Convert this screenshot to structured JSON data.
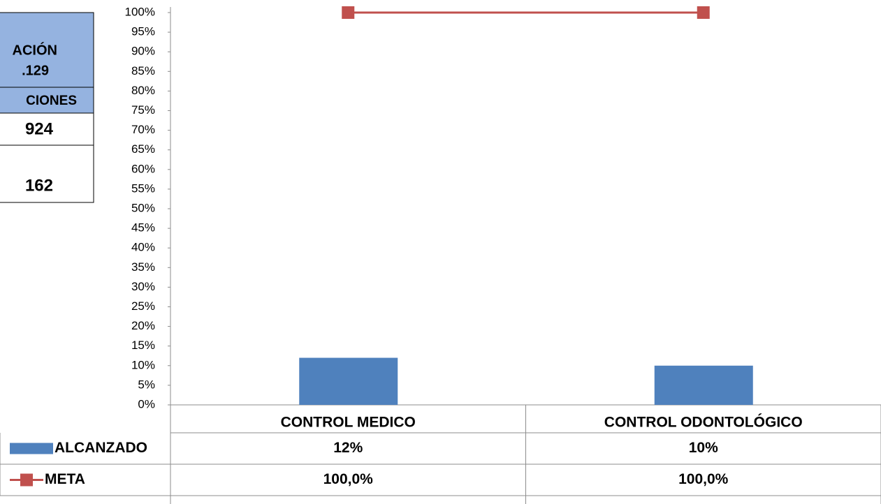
{
  "chart_data": {
    "type": "bar",
    "categories": [
      "CONTROL MEDICO",
      "CONTROL ODONTOLÓGICO"
    ],
    "series": [
      {
        "name": "ALCANZADO",
        "type": "bar",
        "color": "#4f81bd",
        "values": [
          12,
          10
        ],
        "value_labels": [
          "12%",
          "10%"
        ]
      },
      {
        "name": "META",
        "type": "line",
        "color": "#c0504d",
        "values": [
          100,
          100
        ],
        "value_labels": [
          "100,0%",
          "100,0%"
        ]
      }
    ],
    "ylim": [
      0,
      100
    ],
    "yticks": [
      {
        "value": 0,
        "label": "0%"
      },
      {
        "value": 5,
        "label": "5%"
      },
      {
        "value": 10,
        "label": "10%"
      },
      {
        "value": 15,
        "label": "15%"
      },
      {
        "value": 20,
        "label": "20%"
      },
      {
        "value": 25,
        "label": "25%"
      },
      {
        "value": 30,
        "label": "30%"
      },
      {
        "value": 35,
        "label": "35%"
      },
      {
        "value": 40,
        "label": "40%"
      },
      {
        "value": 45,
        "label": "45%"
      },
      {
        "value": 50,
        "label": "50%"
      },
      {
        "value": 55,
        "label": "55%"
      },
      {
        "value": 60,
        "label": "60%"
      },
      {
        "value": 65,
        "label": "65%"
      },
      {
        "value": 70,
        "label": "70%"
      },
      {
        "value": 75,
        "label": "75%"
      },
      {
        "value": 80,
        "label": "80%"
      },
      {
        "value": 85,
        "label": "85%"
      },
      {
        "value": 90,
        "label": "90%"
      },
      {
        "value": 95,
        "label": "95%"
      },
      {
        "value": 100,
        "label": "100%"
      }
    ],
    "grid": false
  },
  "side_table": {
    "rows": [
      "ACIÓN",
      ".129",
      "CIONES",
      "924",
      "162"
    ]
  }
}
